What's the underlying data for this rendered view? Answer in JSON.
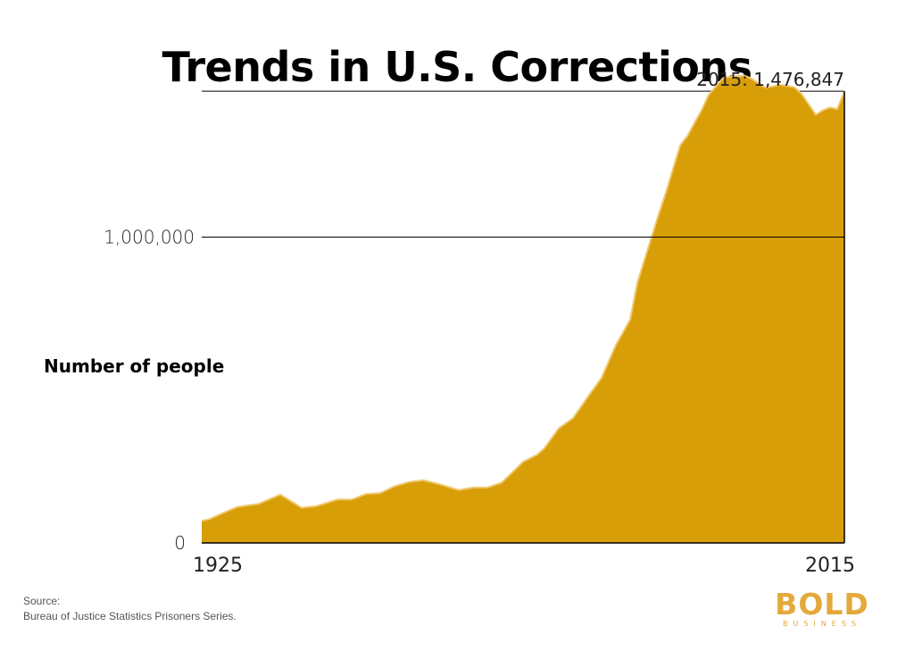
{
  "chart_data": {
    "type": "area",
    "title": "Trends in U.S. Corrections",
    "ylabel": "Number of people",
    "xlim": [
      1925,
      2015
    ],
    "ylim": [
      0,
      1600000
    ],
    "x_tick_labels": [
      "1925",
      "2015"
    ],
    "y_tick_values": [
      0,
      1000000
    ],
    "y_tick_labels": [
      "0",
      "1,000,000"
    ],
    "reference_line": {
      "value": 1476847,
      "label": "2015: 1,476,847"
    },
    "fill_color": "#d89e08",
    "edge_color": "#f0c870",
    "series": [
      {
        "x": [
          1925,
          1926,
          1928,
          1930,
          1933,
          1936,
          1939,
          1941,
          1944,
          1946,
          1948,
          1950,
          1952,
          1954,
          1956,
          1958,
          1961,
          1963,
          1965,
          1967,
          1969,
          1970,
          1972,
          1973,
          1975,
          1977,
          1979,
          1981,
          1983,
          1985,
          1986,
          1987,
          1989,
          1990,
          1992,
          1993,
          1995,
          1996,
          1998,
          1999,
          2001,
          2002,
          2004,
          2006,
          2008,
          2009,
          2011,
          2012,
          2013,
          2014,
          2015
        ],
        "y": [
          72000,
          77000,
          98000,
          118000,
          128000,
          158000,
          115000,
          120000,
          142000,
          142000,
          160000,
          163000,
          185000,
          199000,
          205000,
          194000,
          173000,
          181000,
          181000,
          197000,
          242000,
          265000,
          289000,
          310000,
          375000,
          408000,
          475000,
          540000,
          647000,
          730000,
          850000,
          925000,
          1075000,
          1145000,
          1300000,
          1330000,
          1415000,
          1465000,
          1520000,
          1525000,
          1528000,
          1518000,
          1488000,
          1498000,
          1490000,
          1468000,
          1400000,
          1415000,
          1424000,
          1418000,
          1476847
        ]
      }
    ]
  },
  "source": {
    "label": "Source:",
    "text": "Bureau of Justice Statistics Prisoners Series."
  },
  "logo": {
    "main": "BOLD",
    "sub": "BUSINESS"
  }
}
